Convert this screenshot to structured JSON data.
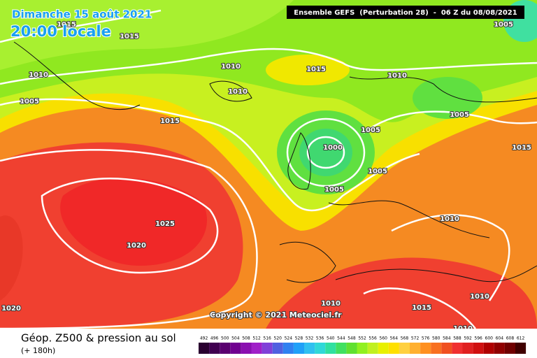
{
  "header": {
    "date": "Dimanche 15 août 2021",
    "time": "20:00 locale",
    "run": "Ensemble GEFS  (Perturbation 28)  -  06 Z du 08/08/2021"
  },
  "copyright": "Copyright © 2021 Meteociel.fr",
  "isobar_labels": [
    1015,
    1015,
    1010,
    1005,
    1010,
    1015,
    1010,
    1015,
    1010,
    1005,
    1005,
    1000,
    1005,
    1005,
    1005,
    1015,
    1025,
    1020,
    1010,
    1020,
    1010,
    1015,
    1010,
    1010
  ],
  "legend": {
    "title": "Géop. Z500 & pression au sol",
    "lead": "(+ 180h)",
    "values": [
      492,
      496,
      500,
      504,
      508,
      512,
      516,
      520,
      524,
      528,
      532,
      536,
      540,
      544,
      548,
      552,
      556,
      560,
      564,
      568,
      572,
      576,
      580,
      584,
      588,
      592,
      596,
      600,
      604,
      608,
      612
    ],
    "colors": [
      "#2a0030",
      "#400050",
      "#5a0070",
      "#700090",
      "#8a10b0",
      "#a020c8",
      "#8040d8",
      "#5060e0",
      "#3080f0",
      "#20a0f8",
      "#30c0f0",
      "#30d8d8",
      "#30e0a0",
      "#40e060",
      "#60e030",
      "#90f020",
      "#c0f020",
      "#e8f000",
      "#ffe000",
      "#ffd040",
      "#ffb030",
      "#ff9020",
      "#f87020",
      "#f05020",
      "#f03030",
      "#e02020",
      "#d01010",
      "#b00000",
      "#900000",
      "#700000",
      "#400000"
    ]
  }
}
